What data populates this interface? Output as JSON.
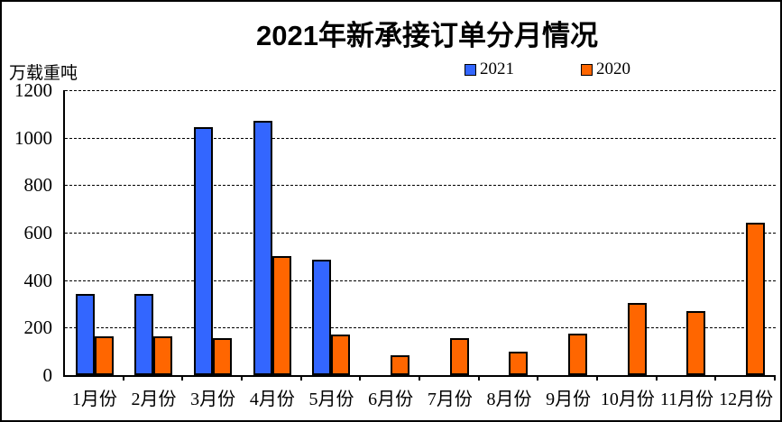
{
  "chart_data": {
    "type": "bar",
    "title": "2021年新承接订单分月情况",
    "ylabel": "万载重吨",
    "xlabel": "",
    "categories": [
      "1月份",
      "2月份",
      "3月份",
      "4月份",
      "5月份",
      "6月份",
      "7月份",
      "8月份",
      "9月份",
      "10月份",
      "11月份",
      "12月份"
    ],
    "series": [
      {
        "name": "2021",
        "color": "#3366ff",
        "values": [
          340,
          340,
          1045,
          1070,
          485,
          0,
          0,
          0,
          0,
          0,
          0,
          0
        ]
      },
      {
        "name": "2020",
        "color": "#ff6600",
        "values": [
          165,
          165,
          155,
          500,
          170,
          85,
          155,
          100,
          175,
          305,
          270,
          640
        ]
      }
    ],
    "ylim": [
      0,
      1200
    ],
    "yticks": [
      0,
      200,
      400,
      600,
      800,
      1000,
      1200
    ],
    "grid": "horizontal-dashed",
    "legend_position": "top-center-right",
    "bar_outline_color": "#000000"
  }
}
